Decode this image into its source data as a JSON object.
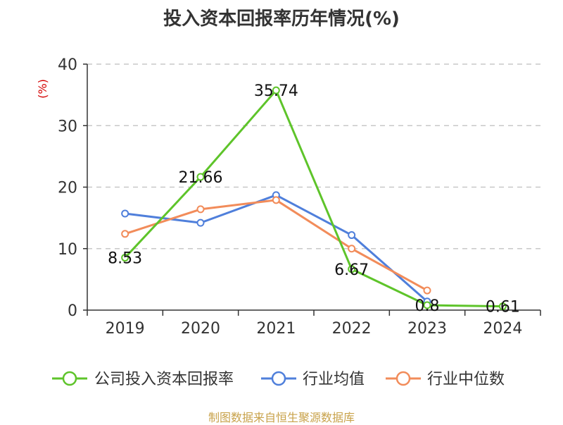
{
  "chart_data": {
    "type": "line",
    "title": "投入资本回报率历年情况(%)",
    "ylabel": "(%)",
    "ylim": [
      0,
      40
    ],
    "yticks": [
      0,
      10,
      20,
      30,
      40
    ],
    "categories": [
      "2019",
      "2020",
      "2021",
      "2022",
      "2023",
      "2024"
    ],
    "series": [
      {
        "name": "公司投入资本回报率",
        "color": "#5ec42a",
        "values": [
          8.53,
          21.66,
          35.74,
          6.67,
          0.8,
          0.61
        ],
        "labels": [
          "8.53",
          "21.66",
          "35.74",
          "6.67",
          "0.8",
          "0.61"
        ]
      },
      {
        "name": "行业均值",
        "color": "#4f7fdb",
        "values": [
          15.7,
          14.2,
          18.7,
          12.2,
          1.4,
          null
        ]
      },
      {
        "name": "行业中位数",
        "color": "#f28c5a",
        "values": [
          12.4,
          16.4,
          17.9,
          10.0,
          3.2,
          null
        ]
      }
    ],
    "legend_position": "bottom",
    "grid": true
  },
  "source": "制图数据来自恒生聚源数据库"
}
